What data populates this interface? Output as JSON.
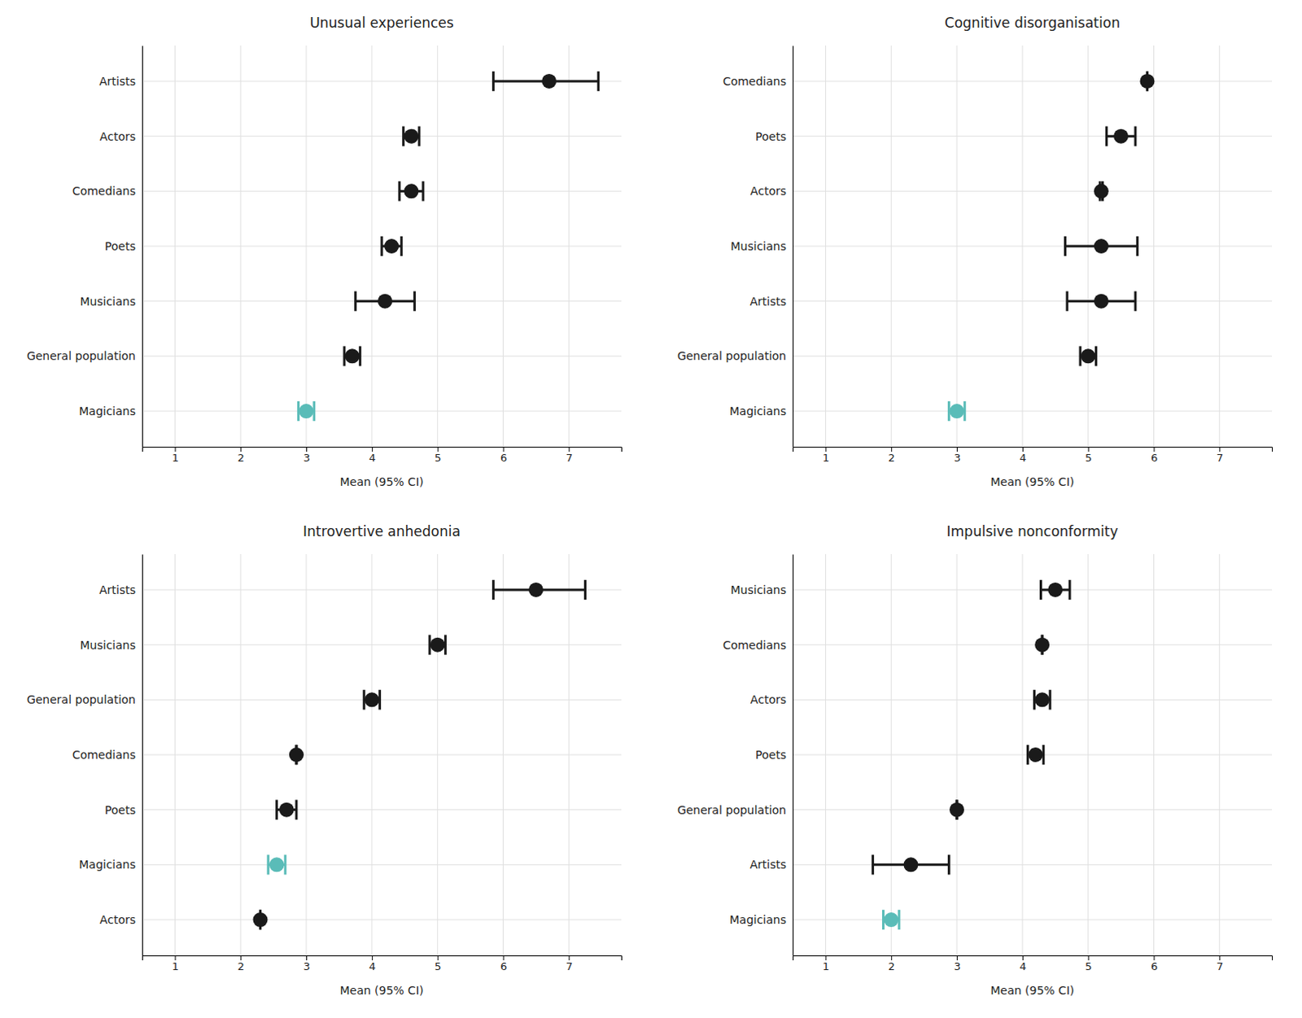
{
  "chart_data": [
    {
      "type": "dot",
      "orientation": "horizontal",
      "grid": true,
      "title": "Unusual experiences",
      "xlabel": "Mean (95% CI)",
      "categories": [
        "Artists",
        "Actors",
        "Comedians",
        "Poets",
        "Musicians",
        "General population",
        "Magicians"
      ],
      "values": [
        6.7,
        4.6,
        4.6,
        4.3,
        4.2,
        3.7,
        3.0
      ],
      "ci_low": [
        5.85,
        4.48,
        4.42,
        4.15,
        3.75,
        3.58,
        2.88
      ],
      "ci_high": [
        7.45,
        4.72,
        4.78,
        4.45,
        4.65,
        3.82,
        3.12
      ],
      "colors": [
        "#1a1a1a",
        "#1a1a1a",
        "#1a1a1a",
        "#1a1a1a",
        "#1a1a1a",
        "#1a1a1a",
        "#5abcb8"
      ],
      "xlim": [
        0.5,
        7.8
      ],
      "xticks": [
        1,
        2,
        3,
        4,
        5,
        6,
        7
      ]
    },
    {
      "type": "dot",
      "orientation": "horizontal",
      "grid": true,
      "title": "Cognitive disorganisation",
      "xlabel": "Mean (95% CI)",
      "categories": [
        "Comedians",
        "Poets",
        "Actors",
        "Musicians",
        "Artists",
        "General population",
        "Magicians"
      ],
      "values": [
        5.9,
        5.5,
        5.2,
        5.2,
        5.2,
        5.0,
        3.0
      ],
      "ci_low": [
        5.9,
        5.28,
        5.18,
        4.65,
        4.68,
        4.88,
        2.88
      ],
      "ci_high": [
        5.9,
        5.72,
        5.22,
        5.75,
        5.72,
        5.12,
        3.12
      ],
      "colors": [
        "#1a1a1a",
        "#1a1a1a",
        "#1a1a1a",
        "#1a1a1a",
        "#1a1a1a",
        "#1a1a1a",
        "#5abcb8"
      ],
      "xlim": [
        0.5,
        7.8
      ],
      "xticks": [
        1,
        2,
        3,
        4,
        5,
        6,
        7
      ]
    },
    {
      "type": "dot",
      "orientation": "horizontal",
      "grid": true,
      "title": "Introvertive anhedonia",
      "xlabel": "Mean (95% CI)",
      "categories": [
        "Artists",
        "Musicians",
        "General population",
        "Comedians",
        "Poets",
        "Magicians",
        "Actors"
      ],
      "values": [
        6.5,
        5.0,
        4.0,
        2.85,
        2.7,
        2.55,
        2.3
      ],
      "ci_low": [
        5.85,
        4.88,
        3.88,
        2.85,
        2.55,
        2.42,
        2.3
      ],
      "ci_high": [
        7.25,
        5.12,
        4.12,
        2.85,
        2.85,
        2.68,
        2.3
      ],
      "colors": [
        "#1a1a1a",
        "#1a1a1a",
        "#1a1a1a",
        "#1a1a1a",
        "#1a1a1a",
        "#5abcb8",
        "#1a1a1a"
      ],
      "xlim": [
        0.5,
        7.8
      ],
      "xticks": [
        1,
        2,
        3,
        4,
        5,
        6,
        7
      ]
    },
    {
      "type": "dot",
      "orientation": "horizontal",
      "grid": true,
      "title": "Impulsive nonconformity",
      "xlabel": "Mean (95% CI)",
      "categories": [
        "Musicians",
        "Comedians",
        "Actors",
        "Poets",
        "General population",
        "Artists",
        "Magicians"
      ],
      "values": [
        4.5,
        4.3,
        4.3,
        4.2,
        3.0,
        2.3,
        2.0
      ],
      "ci_low": [
        4.28,
        4.3,
        4.18,
        4.08,
        3.0,
        1.72,
        1.88
      ],
      "ci_high": [
        4.72,
        4.3,
        4.42,
        4.32,
        3.0,
        2.88,
        2.12
      ],
      "colors": [
        "#1a1a1a",
        "#1a1a1a",
        "#1a1a1a",
        "#1a1a1a",
        "#1a1a1a",
        "#1a1a1a",
        "#5abcb8"
      ],
      "xlim": [
        0.5,
        7.8
      ],
      "xticks": [
        1,
        2,
        3,
        4,
        5,
        6,
        7
      ]
    }
  ]
}
